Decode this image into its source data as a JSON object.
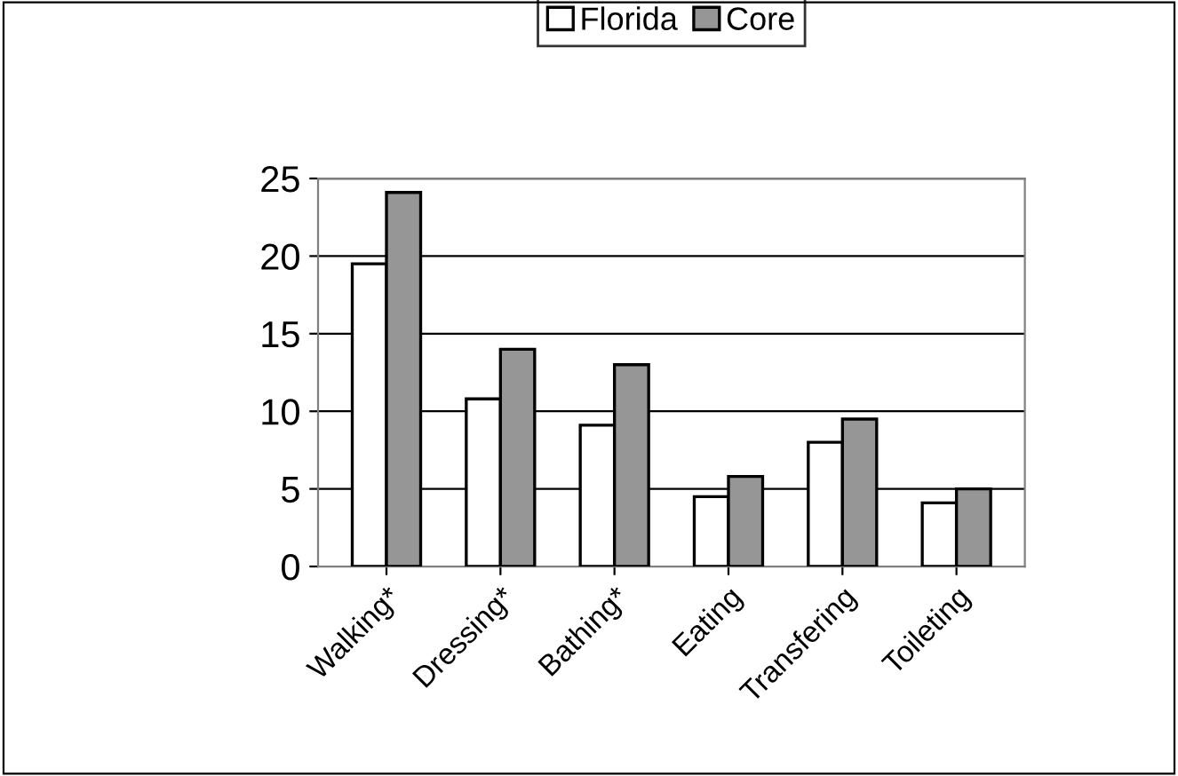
{
  "chart_data": {
    "type": "bar",
    "categories": [
      "Walking*",
      "Dressing*",
      "Bathing*",
      "Eating",
      "Transfering",
      "Toileting"
    ],
    "series": [
      {
        "name": "Florida",
        "color": "#ffffff",
        "values": [
          19.5,
          10.8,
          9.1,
          4.5,
          8.0,
          4.1
        ]
      },
      {
        "name": "Core",
        "color": "#969696",
        "values": [
          24.1,
          14.0,
          13.0,
          5.8,
          9.5,
          5.0
        ]
      }
    ],
    "ylim": [
      0,
      25
    ],
    "yticks": [
      0,
      5,
      10,
      15,
      20,
      25
    ],
    "grid": "y",
    "legend": "top"
  }
}
